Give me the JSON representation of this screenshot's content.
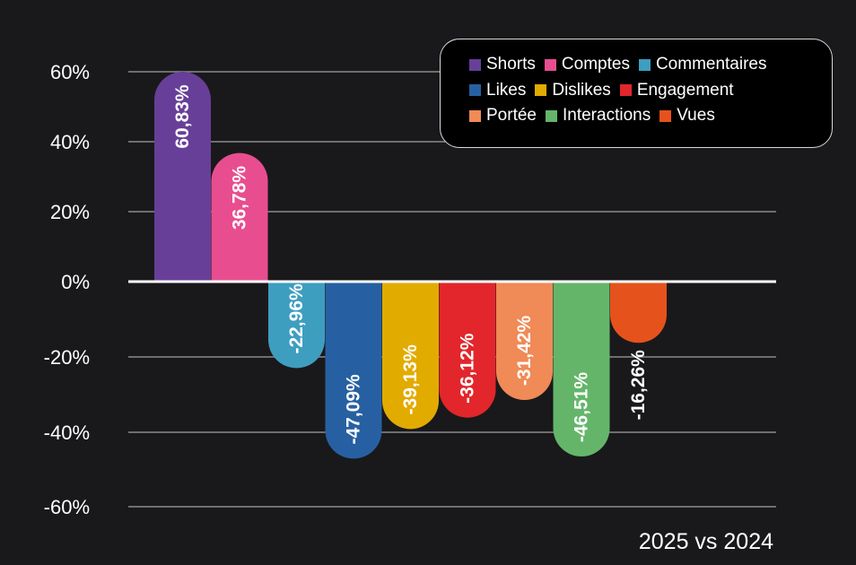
{
  "chart_data": {
    "type": "bar",
    "title": "",
    "caption": "2025 vs 2024",
    "xlabel": "",
    "ylabel": "",
    "ylim": [
      -60,
      60
    ],
    "yticks": [
      60,
      40,
      20,
      0,
      -20,
      -40,
      -60
    ],
    "ytick_labels": [
      "60%",
      "40%",
      "20%",
      "0%",
      "-20%",
      "-40%",
      "-60%"
    ],
    "grid": true,
    "legend_position": "top-right",
    "categories": [
      "Shorts",
      "Comptes",
      "Commentaires",
      "Likes",
      "Dislikes",
      "Engagement",
      "Portée",
      "Interactions",
      "Vues"
    ],
    "values": [
      60.83,
      36.78,
      -22.96,
      -47.09,
      -39.13,
      -36.12,
      -31.42,
      -46.51,
      -16.26
    ],
    "data_labels": [
      "60,83%",
      "36,78%",
      "-22,96%",
      "-47,09%",
      "-39,13%",
      "-36,12%",
      "-31,42%",
      "-46,51%",
      "-16,26%"
    ],
    "colors": [
      "#673f98",
      "#e84e8f",
      "#3e9ec0",
      "#2760a2",
      "#e2ab00",
      "#e2262b",
      "#f08a56",
      "#64b56a",
      "#e6521c"
    ],
    "legend_rows": [
      [
        0,
        1,
        2
      ],
      [
        3,
        4,
        5
      ],
      [
        6,
        7,
        8
      ]
    ]
  }
}
